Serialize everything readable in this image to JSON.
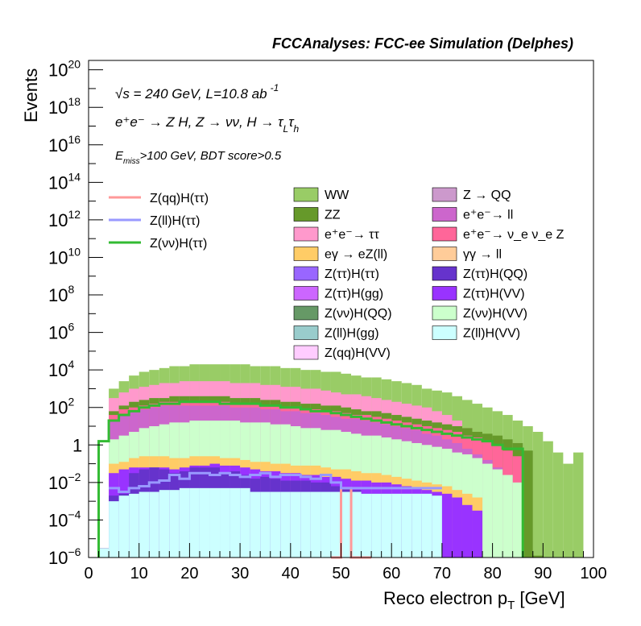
{
  "chart_data": {
    "type": "histogram",
    "title": "FCCAnalyses: FCC-ee Simulation (Delphes)",
    "xlabel": "Reco electron p",
    "xlabel_sub": "T",
    "xlabel_unit": " [GeV]",
    "ylabel": "Events",
    "xlim": [
      0,
      100
    ],
    "ylim_exp": [
      -6,
      20.5
    ],
    "y_log": true,
    "bin_width": 2,
    "xticks": [
      0,
      10,
      20,
      30,
      40,
      50,
      60,
      70,
      80,
      90,
      100
    ],
    "yticks": [
      {
        "exp": -6,
        "label": "10",
        "sup": "−6"
      },
      {
        "exp": -4,
        "label": "10",
        "sup": "−4"
      },
      {
        "exp": -2,
        "label": "10",
        "sup": "−2"
      },
      {
        "exp": 0,
        "label": "1",
        "sup": ""
      },
      {
        "exp": 2,
        "label": "10",
        "sup": "2"
      },
      {
        "exp": 4,
        "label": "10",
        "sup": "4"
      },
      {
        "exp": 6,
        "label": "10",
        "sup": "6"
      },
      {
        "exp": 8,
        "label": "10",
        "sup": "8"
      },
      {
        "exp": 10,
        "label": "10",
        "sup": "10"
      },
      {
        "exp": 12,
        "label": "10",
        "sup": "12"
      },
      {
        "exp": 14,
        "label": "10",
        "sup": "14"
      },
      {
        "exp": 16,
        "label": "10",
        "sup": "16"
      },
      {
        "exp": 18,
        "label": "10",
        "sup": "18"
      },
      {
        "exp": 20,
        "label": "10",
        "sup": "20"
      }
    ],
    "annotations": {
      "sqrt_s": "√s = 240 GeV, L=10.8 ab",
      "sqrt_s_sup": "-1",
      "process": "e⁺e⁻ → Z H, Z → νν, H → τ",
      "process_sub1": "L",
      "process_tau": "τ",
      "process_sub2": "h",
      "selection_prefix": "E",
      "selection_sub": "miss",
      "selection_rest": ">100 GeV, BDT score>0.5"
    },
    "stack_note": "Stacked background layers; values are log10 of cumulative stack height per 2 GeV bin (x from 2 to 98 GeV).",
    "stack_x": [
      2,
      4,
      6,
      8,
      10,
      12,
      14,
      16,
      18,
      20,
      22,
      24,
      26,
      28,
      30,
      32,
      34,
      36,
      38,
      40,
      42,
      44,
      46,
      48,
      50,
      52,
      54,
      56,
      58,
      60,
      62,
      64,
      66,
      68,
      70,
      72,
      74,
      76,
      78,
      80,
      82,
      84,
      86,
      88,
      90,
      92,
      94,
      96
    ],
    "stack_layers": [
      {
        "name": "Z(ll)H(VV)",
        "color": "#ccffff",
        "log10": [
          -5.5,
          -3,
          -2.7,
          -2.6,
          -2.5,
          -2.5,
          -2.4,
          -2.4,
          -2.3,
          -2.3,
          -2.3,
          -2.3,
          -2.3,
          -2.3,
          -2.3,
          -2.5,
          -2.5,
          -2.5,
          -2.5,
          -2.5,
          -2.5,
          -2.5,
          -2.5,
          -2.5,
          -2.5,
          -2.5,
          -2.6,
          -2.6,
          -2.6,
          -2.6,
          -2.6,
          -2.6,
          -2.6,
          -2.7,
          -6,
          -6,
          -6,
          -6,
          -6,
          -6,
          -6,
          -6,
          -6,
          -6,
          -6,
          -6,
          -6,
          -6
        ]
      },
      {
        "name": "Z(ττ)H(QQ)",
        "color": "#6633cc",
        "log10": [
          -5.5,
          -2.7,
          -2.6,
          -1.5,
          -1.3,
          -1.2,
          -1.3,
          -1.5,
          -1.4,
          -1.2,
          -1.2,
          -1.2,
          -1.5,
          -1.4,
          -1.6,
          -1.8,
          -1.7,
          -1.8,
          -1.9,
          -1.9,
          -1.9,
          -2.0,
          -2.0,
          -2.2,
          -2.3,
          -2.4,
          -2.6,
          -2.6,
          -2.6,
          -2.7,
          -2.7,
          -2.7,
          -2.7,
          -2.7,
          -6,
          -6,
          -6,
          -6,
          -6,
          -6,
          -6,
          -6,
          -6,
          -6,
          -6,
          -6,
          -6,
          -6
        ]
      },
      {
        "name": "Z(ττ)H(VV)",
        "color": "#9933ff",
        "log10": [
          -5.5,
          -1.5,
          -1.3,
          -1.2,
          -1.2,
          -1.2,
          -1.2,
          -1.3,
          -1.2,
          -1.1,
          -1.1,
          -1.0,
          -1.1,
          -1.1,
          -1.2,
          -1.3,
          -1.4,
          -1.4,
          -1.5,
          -1.5,
          -1.6,
          -1.6,
          -1.7,
          -1.7,
          -1.8,
          -1.9,
          -1.9,
          -2.0,
          -2.0,
          -2.1,
          -2.2,
          -2.3,
          -2.4,
          -2.5,
          -2.6,
          -2.8,
          -3.2,
          -3.5,
          -6,
          -6,
          -6,
          -6,
          -6,
          -6,
          -6,
          -6,
          -6,
          -6
        ]
      },
      {
        "name": "eγ → eZ(ll)",
        "color": "#ffcc66",
        "log10": [
          -5.5,
          -1.0,
          -0.9,
          -0.7,
          -0.6,
          -0.6,
          -0.6,
          -0.7,
          -0.7,
          -0.6,
          -0.6,
          -0.6,
          -0.7,
          -0.7,
          -0.8,
          -0.9,
          -0.9,
          -1.0,
          -1.0,
          -1.1,
          -1.1,
          -1.1,
          -1.2,
          -1.3,
          -1.3,
          -1.4,
          -1.5,
          -1.5,
          -1.6,
          -1.7,
          -1.8,
          -1.9,
          -2.0,
          -2.1,
          -2.2,
          -2.4,
          -2.6,
          -2.8,
          -6,
          -6,
          -6,
          -6,
          -6,
          -6,
          -6,
          -6,
          -6,
          -6
        ]
      },
      {
        "name": "Z(νν)H(VV)",
        "color": "#ccffcc",
        "log10": [
          -5.5,
          0.3,
          0.5,
          0.7,
          0.9,
          1.0,
          1.1,
          1.2,
          1.2,
          1.3,
          1.3,
          1.3,
          1.3,
          1.3,
          1.2,
          1.2,
          1.2,
          1.1,
          1.1,
          1.0,
          0.9,
          0.9,
          0.8,
          0.8,
          0.7,
          0.6,
          0.5,
          0.5,
          0.4,
          0.3,
          0.2,
          0.1,
          0.0,
          -0.1,
          -0.2,
          -0.4,
          -0.5,
          -0.7,
          -1.0,
          -1.3,
          -1.6,
          -2.0,
          -6,
          -6,
          -6,
          -6,
          -6,
          -6
        ]
      },
      {
        "name": "e⁺e⁻ → ll",
        "color": "#cc66cc",
        "log10": [
          -5.5,
          1.3,
          1.6,
          1.8,
          1.9,
          2.0,
          2.1,
          2.1,
          2.1,
          2.1,
          2.1,
          2.1,
          2.1,
          2.0,
          2.0,
          2.0,
          1.9,
          1.9,
          1.8,
          1.8,
          1.7,
          1.7,
          1.6,
          1.5,
          1.4,
          1.4,
          1.3,
          1.2,
          1.1,
          1.0,
          0.9,
          0.8,
          0.6,
          0.5,
          0.3,
          0.1,
          -0.2,
          -0.5,
          -0.8,
          -1.2,
          -1.6,
          -2.1,
          -6,
          -6,
          -6,
          -6,
          -6,
          -6
        ]
      },
      {
        "name": "e⁺e⁻ → ν_e ν_e Z",
        "color": "#ff6699",
        "log10": [
          -5.5,
          1.6,
          1.9,
          2.0,
          2.1,
          2.2,
          2.3,
          2.3,
          2.3,
          2.3,
          2.3,
          2.3,
          2.3,
          2.2,
          2.2,
          2.2,
          2.1,
          2.1,
          2.0,
          2.0,
          1.9,
          1.9,
          1.8,
          1.8,
          1.7,
          1.6,
          1.6,
          1.5,
          1.4,
          1.3,
          1.2,
          1.1,
          1.0,
          0.9,
          0.8,
          0.7,
          0.5,
          0.4,
          0.2,
          0.0,
          -0.3,
          -0.6,
          -6,
          -6,
          -6,
          -6,
          -6,
          -6
        ]
      },
      {
        "name": "ZZ",
        "color": "#66992a",
        "log10": [
          -5.5,
          1.8,
          2.1,
          2.3,
          2.4,
          2.5,
          2.5,
          2.6,
          2.6,
          2.6,
          2.6,
          2.6,
          2.6,
          2.5,
          2.5,
          2.5,
          2.4,
          2.4,
          2.3,
          2.3,
          2.2,
          2.2,
          2.1,
          2.1,
          2.0,
          1.9,
          1.8,
          1.8,
          1.7,
          1.6,
          1.5,
          1.4,
          1.3,
          1.2,
          1.1,
          1.0,
          0.9,
          0.7,
          0.6,
          0.5,
          0.3,
          0.1,
          -0.3,
          -5.9,
          -6,
          -6,
          -6,
          -6
        ]
      },
      {
        "name": "e⁺e⁻ → ττ",
        "color": "#ff99cc",
        "log10": [
          -5.5,
          2.5,
          2.8,
          3.0,
          3.1,
          3.2,
          3.3,
          3.3,
          3.4,
          3.4,
          3.4,
          3.4,
          3.4,
          3.3,
          3.3,
          3.3,
          3.2,
          3.2,
          3.1,
          3.1,
          3.0,
          3.0,
          2.9,
          2.8,
          2.7,
          2.7,
          2.6,
          2.5,
          2.4,
          2.3,
          2.2,
          2.1,
          2.0,
          1.8,
          1.6,
          1.3,
          0.9,
          0.2,
          -6,
          -6,
          -6,
          -6,
          -6,
          -6,
          -6,
          -6,
          -6,
          -6
        ]
      },
      {
        "name": "WW",
        "color": "#99cc66",
        "log10": [
          -5.5,
          3.0,
          3.4,
          3.7,
          3.9,
          4.0,
          4.1,
          4.2,
          4.2,
          4.3,
          4.3,
          4.3,
          4.3,
          4.3,
          4.3,
          4.2,
          4.2,
          4.2,
          4.1,
          4.1,
          4.0,
          4.0,
          3.9,
          3.9,
          3.8,
          3.7,
          3.6,
          3.6,
          3.5,
          3.4,
          3.3,
          3.2,
          3.0,
          2.9,
          2.8,
          2.6,
          2.4,
          2.2,
          2.0,
          1.8,
          1.6,
          1.3,
          1.0,
          0.7,
          0.2,
          -0.4,
          -1.0,
          -0.4
        ]
      }
    ],
    "signal_lines": [
      {
        "name": "Z(qq)H(ττ)",
        "color": "#ff9999",
        "log10_x": [
          48,
          50,
          52,
          54
        ],
        "log10_y": [
          -6,
          -2.3,
          -6,
          -6
        ]
      },
      {
        "name": "Z(ll)H(ττ)",
        "color": "#9999ff",
        "x": [
          4,
          6,
          8,
          10,
          12,
          14,
          16,
          18,
          20,
          22,
          24,
          26,
          28,
          30,
          32,
          34,
          36,
          38,
          40,
          42,
          44,
          46,
          48,
          50,
          52,
          54,
          56,
          58,
          60,
          62,
          64,
          66,
          68
        ],
        "log10": [
          -2.3,
          -2.5,
          -2.3,
          -2.2,
          -2.0,
          -1.9,
          -1.6,
          -1.8,
          -1.5,
          -1.5,
          -1.6,
          -1.5,
          -1.6,
          -1.7,
          -1.6,
          -1.5,
          -1.7,
          -1.6,
          -1.6,
          -1.7,
          -1.8,
          -1.6,
          -2.0,
          -2.3,
          -2.3,
          -2.3,
          -2.3,
          -2.3,
          -2.3,
          -2.3,
          -2.3,
          -2.3,
          -2.3
        ]
      },
      {
        "name": "Z(νν)H(ττ)",
        "color": "#33bb33",
        "x": [
          2,
          4,
          6,
          8,
          10,
          12,
          14,
          16,
          18,
          20,
          22,
          24,
          26,
          28,
          30,
          32,
          34,
          36,
          38,
          40,
          42,
          44,
          46,
          48,
          50,
          52,
          54,
          56,
          58,
          60,
          62,
          64,
          66,
          68,
          70,
          72,
          74,
          76,
          78,
          80,
          82,
          84
        ],
        "log10": [
          0.2,
          1.3,
          1.6,
          1.8,
          2.0,
          2.1,
          2.2,
          2.2,
          2.3,
          2.3,
          2.3,
          2.3,
          2.2,
          2.2,
          2.2,
          2.2,
          2.1,
          2.1,
          2.0,
          2.0,
          1.9,
          1.8,
          1.8,
          1.7,
          1.6,
          1.5,
          1.4,
          1.3,
          1.2,
          1.1,
          1.0,
          0.9,
          0.8,
          0.7,
          0.6,
          0.5,
          0.4,
          0.3,
          0.2,
          0.0,
          -0.2,
          -0.2
        ]
      }
    ],
    "legend_signals": [
      {
        "label": "Z(qq)H(ττ)",
        "color": "#ff9999"
      },
      {
        "label": "Z(ll)H(ττ)",
        "color": "#9999ff"
      },
      {
        "label": "Z(νν)H(ττ)",
        "color": "#33bb33"
      }
    ],
    "legend_bkg_col1": [
      {
        "label": "WW",
        "color": "#99cc66"
      },
      {
        "label": "ZZ",
        "color": "#66992a"
      },
      {
        "label": "e⁺e⁻→ ττ",
        "color": "#ff99cc"
      },
      {
        "label": "eγ → eZ(ll)",
        "color": "#ffcc66"
      },
      {
        "label": "Z(ττ)H(ττ)",
        "color": "#9966ff"
      },
      {
        "label": "Z(ττ)H(gg)",
        "color": "#cc66ff"
      },
      {
        "label": "Z(νν)H(QQ)",
        "color": "#669966"
      },
      {
        "label": "Z(ll)H(gg)",
        "color": "#99cccc"
      },
      {
        "label": "Z(qq)H(VV)",
        "color": "#ffccff"
      }
    ],
    "legend_bkg_col2": [
      {
        "label": "Z → QQ",
        "color": "#cc99cc"
      },
      {
        "label": "e⁺e⁻→ ll",
        "color": "#cc66cc"
      },
      {
        "label": "e⁺e⁻→ ν_e ν_e Z",
        "color": "#ff6699"
      },
      {
        "label": "γγ → ll",
        "color": "#ffcc99"
      },
      {
        "label": "Z(ττ)H(QQ)",
        "color": "#6633cc"
      },
      {
        "label": "Z(ττ)H(VV)",
        "color": "#9933ff"
      },
      {
        "label": "Z(νν)H(VV)",
        "color": "#ccffcc"
      },
      {
        "label": "Z(ll)H(VV)",
        "color": "#ccffff"
      }
    ]
  }
}
